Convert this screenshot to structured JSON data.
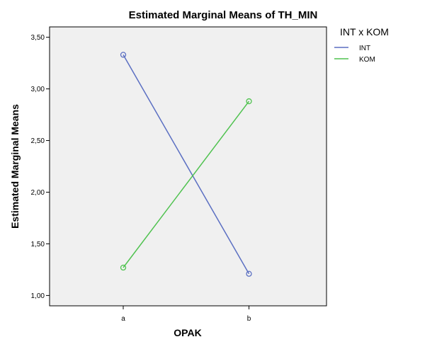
{
  "chart_data": {
    "type": "line",
    "title": "Estimated Marginal Means of TH_MIN",
    "xlabel": "OPAK",
    "ylabel": "Estimated Marginal Means",
    "categories": [
      "a",
      "b"
    ],
    "ylim": [
      0.9,
      3.6
    ],
    "yticks": [
      1.0,
      1.5,
      2.0,
      2.5,
      3.0,
      3.5
    ],
    "ytick_labels": [
      "1,00",
      "1,50",
      "2,00",
      "2,50",
      "3,00",
      "3,50"
    ],
    "grid": false,
    "legend": {
      "title": "INT x KOM",
      "placement": "right"
    },
    "series": [
      {
        "name": "INT",
        "values": [
          3.33,
          1.21
        ],
        "color": "#5b6fc2"
      },
      {
        "name": "KOM",
        "values": [
          1.27,
          2.88
        ],
        "color": "#4fc24f"
      }
    ],
    "plot_background": "#f0f0f0"
  }
}
